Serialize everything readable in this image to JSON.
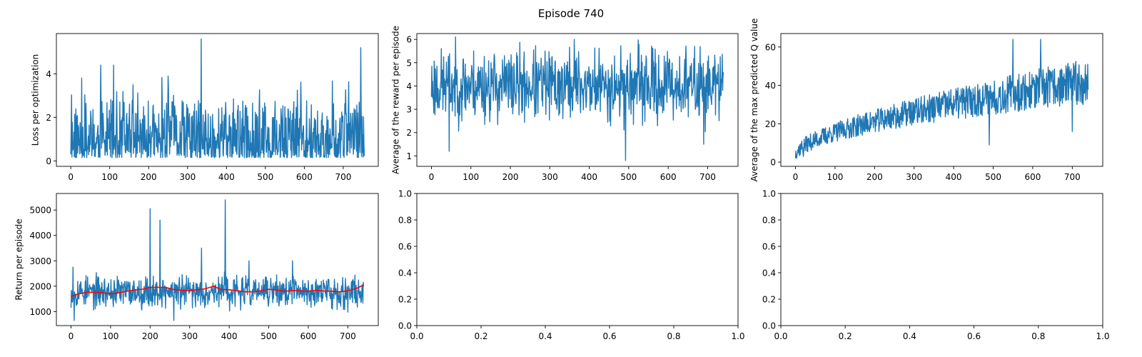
{
  "figure": {
    "suptitle": "Episode 740"
  },
  "chart_data": [
    {
      "type": "line",
      "title": "",
      "xlabel": "",
      "ylabel": "Loss per optimization",
      "xlim": [
        -37,
        790
      ],
      "ylim": [
        -0.25,
        5.85
      ],
      "xticks": [
        0,
        100,
        200,
        300,
        400,
        500,
        600,
        700
      ],
      "yticks": [
        0,
        2,
        4
      ],
      "series": [
        {
          "color": "#1f77b4",
          "gen": {
            "n": 755,
            "mode": "loss",
            "seed": 11,
            "base": 0.8,
            "spread": 1.3,
            "peaks": [
              [
                335,
                5.6
              ],
              [
                745,
                5.2
              ],
              [
                110,
                4.4
              ],
              [
                77,
                4.4
              ],
              [
                250,
                3.9
              ],
              [
                28,
                3.8
              ],
              [
                160,
                3.5
              ]
            ]
          }
        }
      ]
    },
    {
      "type": "line",
      "title": "",
      "xlabel": "",
      "ylabel": "Average of the reward per episode",
      "xlim": [
        -37,
        777
      ],
      "ylim": [
        0.55,
        6.25
      ],
      "xticks": [
        0,
        100,
        200,
        300,
        400,
        500,
        600,
        700
      ],
      "yticks": [
        1,
        2,
        3,
        4,
        5,
        6
      ],
      "series": [
        {
          "color": "#1f77b4",
          "gen": {
            "n": 741,
            "mode": "band",
            "seed": 23,
            "lo": 2.2,
            "hi": 5.8,
            "mean": 3.8,
            "peaks": [
              [
                492,
                0.8
              ],
              [
                45,
                1.2
              ],
              [
                362,
                6.0
              ],
              [
                690,
                1.5
              ]
            ]
          }
        }
      ]
    },
    {
      "type": "line",
      "title": "",
      "xlabel": "",
      "ylabel": "Average of the max predicted Q value",
      "xlim": [
        -37,
        777
      ],
      "ylim": [
        -2.2,
        67
      ],
      "xticks": [
        0,
        100,
        200,
        300,
        400,
        500,
        600,
        700
      ],
      "yticks": [
        0,
        20,
        40,
        60
      ],
      "series": [
        {
          "color": "#1f77b4",
          "gen": {
            "n": 741,
            "mode": "trend",
            "seed": 37,
            "start": 4,
            "end": 42,
            "spread": 10,
            "peaks": [
              [
                490,
                9
              ],
              [
                620,
                64
              ],
              [
                550,
                64
              ],
              [
                20,
                3
              ],
              [
                700,
                16
              ]
            ]
          }
        }
      ]
    },
    {
      "type": "line",
      "title": "",
      "xlabel": "",
      "ylabel": "Return per episode",
      "xlim": [
        -37,
        777
      ],
      "ylim": [
        450,
        5650
      ],
      "xticks": [
        0,
        100,
        200,
        300,
        400,
        500,
        600,
        700
      ],
      "yticks": [
        1000,
        2000,
        3000,
        4000,
        5000
      ],
      "series": [
        {
          "color": "#1f77b4",
          "gen": {
            "n": 741,
            "mode": "band",
            "seed": 53,
            "lo": 1050,
            "hi": 2500,
            "mean": 1800,
            "peaks": [
              [
                390,
                5400
              ],
              [
                200,
                5050
              ],
              [
                225,
                4600
              ],
              [
                330,
                3500
              ],
              [
                5,
                2750
              ],
              [
                8,
                650
              ],
              [
                260,
                650
              ],
              [
                450,
                3000
              ],
              [
                560,
                3000
              ]
            ]
          }
        },
        {
          "color": "#ff0000",
          "x": [
            0,
            20,
            40,
            60,
            80,
            100,
            120,
            140,
            160,
            180,
            200,
            220,
            240,
            260,
            280,
            300,
            320,
            340,
            360,
            380,
            400,
            420,
            440,
            460,
            480,
            500,
            520,
            540,
            560,
            580,
            600,
            620,
            640,
            660,
            680,
            700,
            720,
            740
          ],
          "y": [
            1600,
            1700,
            1760,
            1760,
            1740,
            1700,
            1740,
            1800,
            1850,
            1880,
            1950,
            1960,
            1950,
            1870,
            1840,
            1820,
            1860,
            1900,
            2000,
            1870,
            1860,
            1820,
            1780,
            1780,
            1820,
            1880,
            1850,
            1800,
            1830,
            1820,
            1800,
            1840,
            1810,
            1800,
            1780,
            1820,
            1900,
            2050
          ]
        }
      ]
    },
    {
      "type": "line",
      "title": "",
      "xlabel": "",
      "ylabel": "",
      "xlim": [
        0,
        1
      ],
      "ylim": [
        0,
        1
      ],
      "xticks": [
        "0.0",
        "0.2",
        "0.4",
        "0.6",
        "0.8",
        "1.0"
      ],
      "yticks": [
        "0.0",
        "0.2",
        "0.4",
        "0.6",
        "0.8",
        "1.0"
      ],
      "series": []
    },
    {
      "type": "line",
      "title": "",
      "xlabel": "",
      "ylabel": "",
      "xlim": [
        0,
        1
      ],
      "ylim": [
        0,
        1
      ],
      "xticks": [
        "0.0",
        "0.2",
        "0.4",
        "0.6",
        "0.8",
        "1.0"
      ],
      "yticks": [
        "0.0",
        "0.2",
        "0.4",
        "0.6",
        "0.8",
        "1.0"
      ],
      "series": []
    }
  ]
}
